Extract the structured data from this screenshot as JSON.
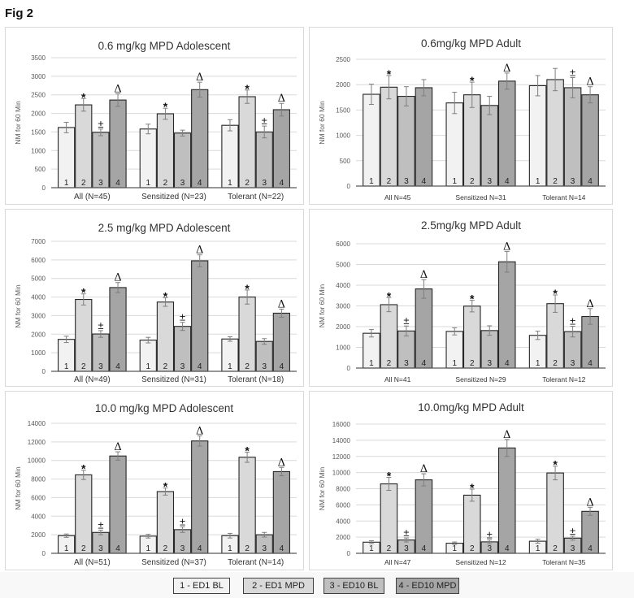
{
  "figure_label": "Fig 2",
  "legend": [
    {
      "label": "1 - ED1 BL",
      "color": "#f2f2f2"
    },
    {
      "label": "2 - ED1 MPD",
      "color": "#d9d9d9"
    },
    {
      "label": "3 - ED10 BL",
      "color": "#bfbfbf"
    },
    {
      "label": "4 - ED10 MPD",
      "color": "#a5a5a5"
    }
  ],
  "chart_data": [
    {
      "type": "bar",
      "title": "0.6 mg/kg MPD Adolescent",
      "ylabel": "NM for 60 Min",
      "ylim": [
        0,
        3500
      ],
      "yticks": [
        0,
        500,
        1000,
        1500,
        2000,
        2500,
        3000,
        3500
      ],
      "grid": true,
      "bar_numbers": [
        "1",
        "2",
        "3",
        "4"
      ],
      "categories": [
        "All (N=45)",
        "Sensitized (N=23)",
        "Tolerant (N=22)"
      ],
      "series": [
        {
          "name": "1 - ED1 BL",
          "values": [
            1620,
            1580,
            1680
          ],
          "errors": [
            140,
            130,
            150
          ]
        },
        {
          "name": "2 - ED1 MPD",
          "values": [
            2230,
            1990,
            2450
          ],
          "errors": [
            170,
            150,
            180
          ]
        },
        {
          "name": "3 - ED10 BL",
          "values": [
            1490,
            1470,
            1500
          ],
          "errors": [
            90,
            80,
            160
          ]
        },
        {
          "name": "4 - ED10 MPD",
          "values": [
            2360,
            2640,
            2100
          ],
          "errors": [
            170,
            200,
            170
          ]
        }
      ],
      "annotations": [
        [
          "",
          "*",
          "±",
          "Δ"
        ],
        [
          "",
          "*",
          "",
          "Δ"
        ],
        [
          "",
          "*",
          "±",
          "Δ"
        ]
      ]
    },
    {
      "type": "bar",
      "title": "0.6mg/kg MPD Adult",
      "ylabel": "NM for 60 Min",
      "ylim": [
        0,
        2500
      ],
      "yticks": [
        0,
        500,
        1000,
        1500,
        2000,
        2500
      ],
      "grid": true,
      "bar_numbers": [
        "1",
        "2",
        "3",
        "4"
      ],
      "categories": [
        "All N=45",
        "Sensitized N=31",
        "Tolerant N=14"
      ],
      "series": [
        {
          "name": "1 - ED1 BL",
          "values": [
            1810,
            1640,
            1980
          ],
          "errors": [
            200,
            210,
            200
          ]
        },
        {
          "name": "2 - ED1 MPD",
          "values": [
            1950,
            1800,
            2100
          ],
          "errors": [
            230,
            250,
            220
          ]
        },
        {
          "name": "3 - ED10 BL",
          "values": [
            1770,
            1590,
            1940
          ],
          "errors": [
            190,
            180,
            200
          ]
        },
        {
          "name": "4 - ED10 MPD",
          "values": [
            1940,
            2070,
            1800
          ],
          "errors": [
            160,
            160,
            160
          ]
        }
      ],
      "annotations": [
        [
          "",
          "*",
          "",
          ""
        ],
        [
          "",
          "*",
          "",
          "Δ"
        ],
        [
          "",
          "",
          "±",
          "Δ"
        ]
      ]
    },
    {
      "type": "bar",
      "title": "2.5 mg/kg MPD Adolescent",
      "ylabel": "NM for 60 Min",
      "ylim": [
        0,
        7000
      ],
      "yticks": [
        0,
        1000,
        2000,
        3000,
        4000,
        5000,
        6000,
        7000
      ],
      "grid": true,
      "bar_numbers": [
        "1",
        "2",
        "3",
        "4"
      ],
      "categories": [
        "All (N=49)",
        "Sensitized (N=31)",
        "Tolerant (N=18)"
      ],
      "series": [
        {
          "name": "1 - ED1 BL",
          "values": [
            1720,
            1680,
            1740
          ],
          "errors": [
            170,
            150,
            120
          ]
        },
        {
          "name": "2 - ED1 MPD",
          "values": [
            3870,
            3730,
            4000
          ],
          "errors": [
            300,
            230,
            380
          ]
        },
        {
          "name": "3 - ED10 BL",
          "values": [
            2010,
            2420,
            1610
          ],
          "errors": [
            180,
            220,
            150
          ]
        },
        {
          "name": "4 - ED10 MPD",
          "values": [
            4510,
            5950,
            3130
          ],
          "errors": [
            270,
            320,
            220
          ]
        }
      ],
      "annotations": [
        [
          "",
          "*",
          "±",
          "Δ"
        ],
        [
          "",
          "*",
          "±",
          "Δ"
        ],
        [
          "",
          "*",
          "",
          "Δ"
        ]
      ]
    },
    {
      "type": "bar",
      "title": "2.5mg/kg MPD Adult",
      "ylabel": "NM for 60 Min",
      "ylim": [
        0,
        6000
      ],
      "yticks": [
        0,
        1000,
        2000,
        3000,
        4000,
        5000,
        6000
      ],
      "grid": true,
      "bar_numbers": [
        "1",
        "2",
        "3",
        "4"
      ],
      "categories": [
        "All N=41",
        "Sensitized N=29",
        "Tolerant N=12"
      ],
      "series": [
        {
          "name": "1 - ED1 BL",
          "values": [
            1680,
            1770,
            1580
          ],
          "errors": [
            180,
            170,
            200
          ]
        },
        {
          "name": "2 - ED1 MPD",
          "values": [
            3060,
            2990,
            3110
          ],
          "errors": [
            340,
            280,
            420
          ]
        },
        {
          "name": "3 - ED10 BL",
          "values": [
            1790,
            1810,
            1760
          ],
          "errors": [
            240,
            230,
            260
          ]
        },
        {
          "name": "4 - ED10 MPD",
          "values": [
            3820,
            5130,
            2490
          ],
          "errors": [
            450,
            500,
            380
          ]
        }
      ],
      "annotations": [
        [
          "",
          "*",
          "±",
          "Δ"
        ],
        [
          "",
          "*",
          "",
          "Δ"
        ],
        [
          "",
          "*",
          "±",
          "Δ"
        ]
      ]
    },
    {
      "type": "bar",
      "title": "10.0 mg/kg MPD Adolescent",
      "ylabel": "NM for 60 Min",
      "ylim": [
        0,
        14000
      ],
      "yticks": [
        0,
        2000,
        4000,
        6000,
        8000,
        10000,
        12000,
        14000
      ],
      "grid": true,
      "bar_numbers": [
        "1",
        "2",
        "3",
        "4"
      ],
      "categories": [
        "All (N=51)",
        "Sensitized (N=37)",
        "Tolerant (N=14)"
      ],
      "series": [
        {
          "name": "1 - ED1 BL",
          "values": [
            1900,
            1850,
            1900
          ],
          "errors": [
            180,
            200,
            250
          ]
        },
        {
          "name": "2 - ED1 MPD",
          "values": [
            8450,
            6650,
            10350
          ],
          "errors": [
            500,
            380,
            550
          ]
        },
        {
          "name": "3 - ED10 BL",
          "values": [
            2250,
            2550,
            2000
          ],
          "errors": [
            250,
            300,
            250
          ]
        },
        {
          "name": "4 - ED10 MPD",
          "values": [
            10480,
            12100,
            8800
          ],
          "errors": [
            450,
            550,
            450
          ]
        }
      ],
      "annotations": [
        [
          "",
          "*",
          "±",
          "Δ"
        ],
        [
          "",
          "*",
          "±",
          "Δ"
        ],
        [
          "",
          "*",
          "",
          "Δ"
        ]
      ]
    },
    {
      "type": "bar",
      "title": "10.0mg/kg MPD Adult",
      "ylabel": "NM for 60 Min",
      "ylim": [
        0,
        16000
      ],
      "yticks": [
        0,
        2000,
        4000,
        6000,
        8000,
        10000,
        12000,
        14000,
        16000
      ],
      "grid": true,
      "bar_numbers": [
        "1",
        "2",
        "3",
        "4"
      ],
      "categories": [
        "All N=47",
        "Sensitized N=12",
        "Tolerant N=35"
      ],
      "series": [
        {
          "name": "1 - ED1 BL",
          "values": [
            1380,
            1250,
            1500
          ],
          "errors": [
            180,
            150,
            250
          ]
        },
        {
          "name": "2 - ED1 MPD",
          "values": [
            8600,
            7200,
            9950
          ],
          "errors": [
            800,
            750,
            850
          ]
        },
        {
          "name": "3 - ED10 BL",
          "values": [
            1650,
            1420,
            1880
          ],
          "errors": [
            250,
            250,
            250
          ]
        },
        {
          "name": "4 - ED10 MPD",
          "values": [
            9100,
            13050,
            5200
          ],
          "errors": [
            750,
            1050,
            500
          ]
        }
      ],
      "annotations": [
        [
          "",
          "*",
          "±",
          "Δ"
        ],
        [
          "",
          "*",
          "±",
          "Δ"
        ],
        [
          "",
          "*",
          "±",
          "Δ"
        ]
      ]
    }
  ]
}
